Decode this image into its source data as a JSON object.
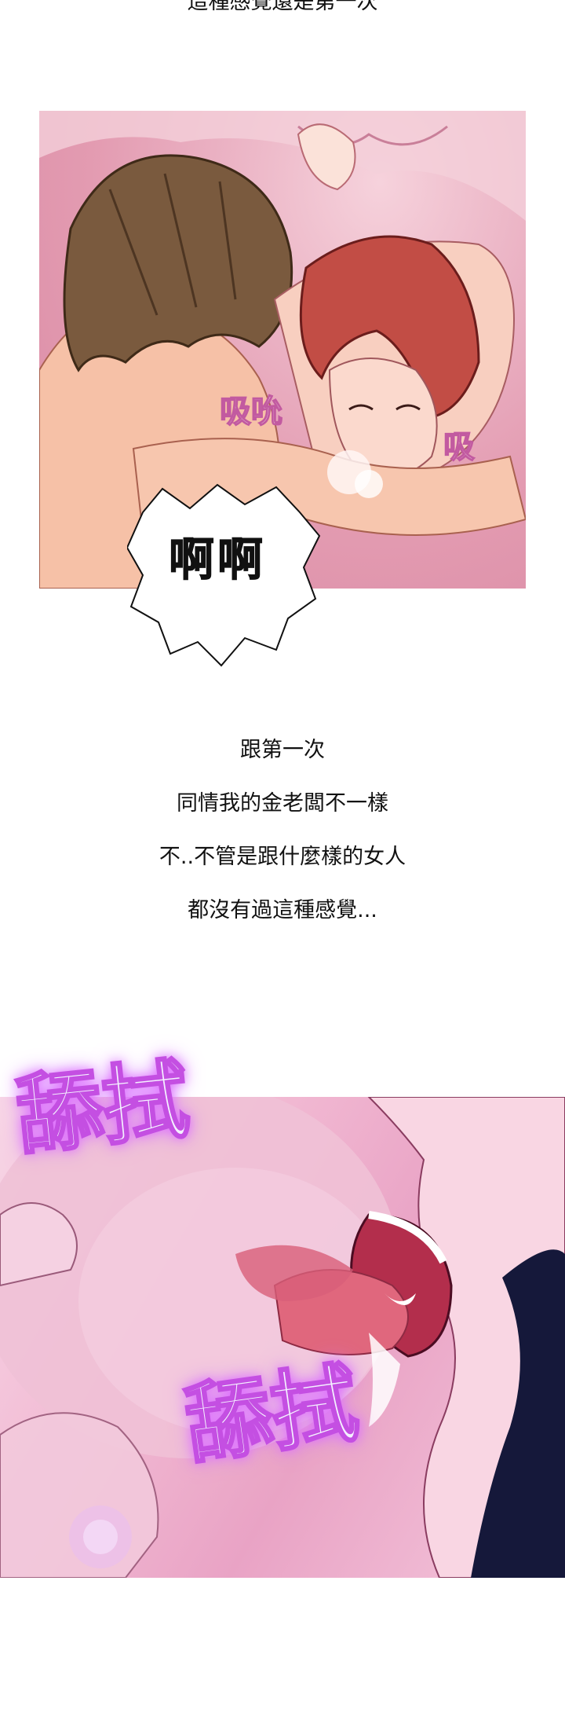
{
  "captions": {
    "top": "這種感覺還是第一次",
    "narration": [
      "跟第一次",
      "同情我的金老闆不一樣",
      "不..不管是跟什麼樣的女人",
      "都沒有過這種感覺..."
    ]
  },
  "panel1": {
    "bubble_text": "啊啊",
    "sfx_left": "吸吮",
    "sfx_right": "吸"
  },
  "panel2": {
    "sfx_top": "舔拭",
    "sfx_bottom": "舔拭"
  }
}
